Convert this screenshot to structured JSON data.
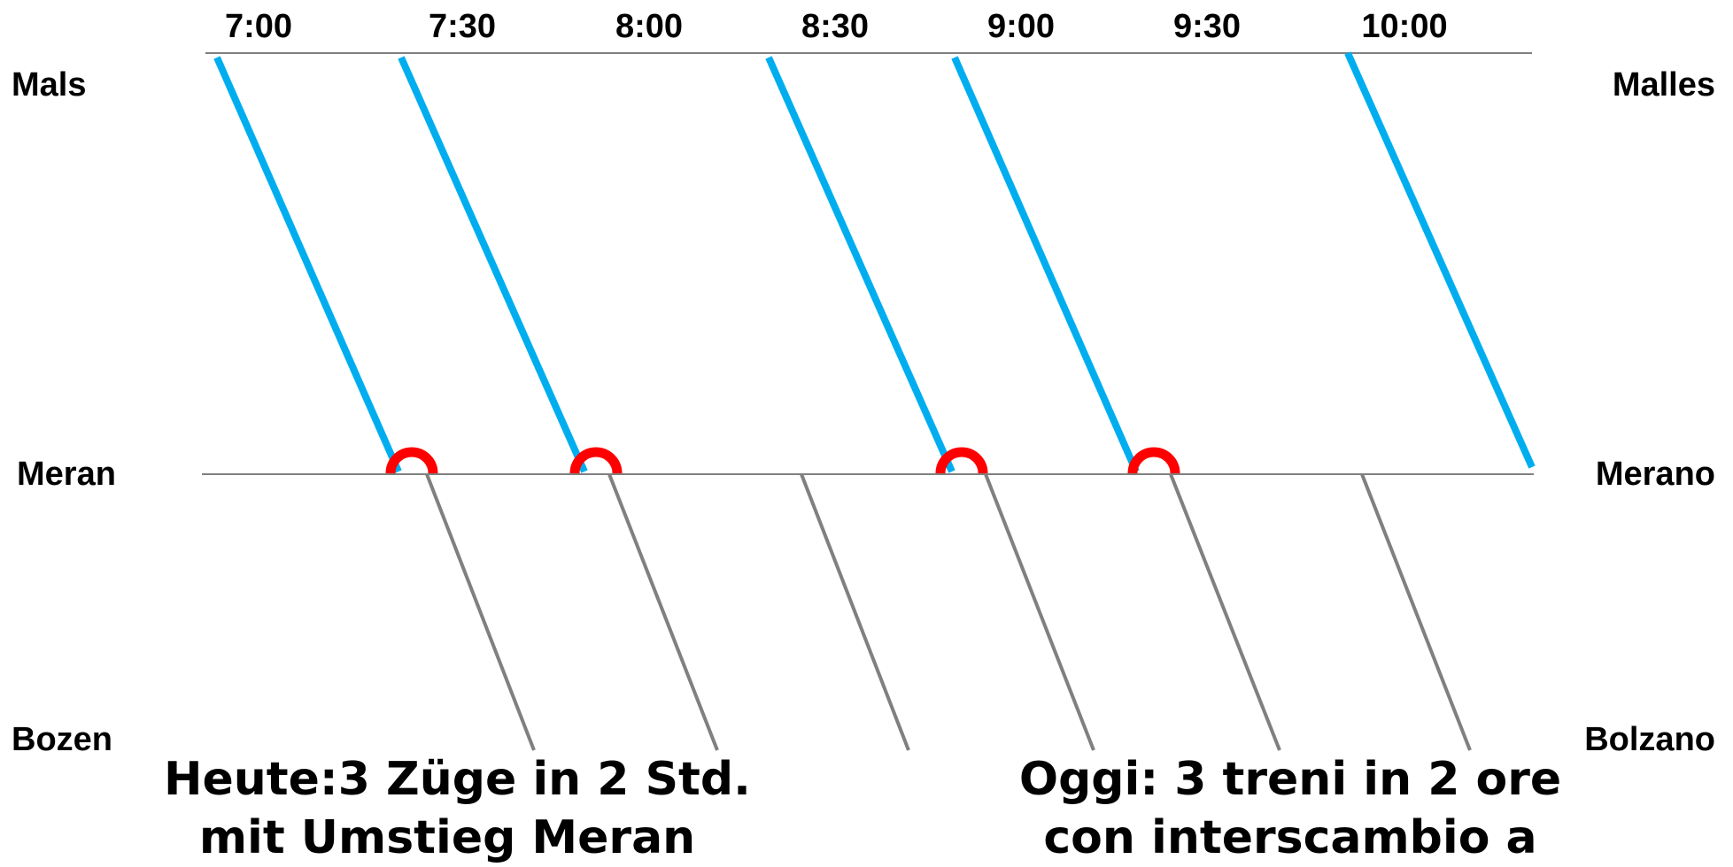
{
  "time_axis": {
    "labels": [
      "7:00",
      "7:30",
      "8:00",
      "8:30",
      "9:00",
      "9:30",
      "10:00"
    ]
  },
  "stations": {
    "top": {
      "left": "Mals",
      "right": "Malles"
    },
    "middle": {
      "left": "Meran",
      "right": "Merano"
    },
    "bottom": {
      "left": "Bozen",
      "right": "Bolzano"
    }
  },
  "trains": {
    "upper_section_color": "#00aeef",
    "lower_section_color": "#808080",
    "transfer_marker_color": "#ff0000",
    "upper_count": 5,
    "lower_count": 6,
    "transfer_count": 4
  },
  "captions": {
    "german": {
      "line1": "Heute:3 Züge in 2 Std.",
      "line2": "mit Umstieg Meran"
    },
    "italian": {
      "line1": "Oggi: 3 treni in 2 ore",
      "line2": "con interscambio a"
    }
  }
}
